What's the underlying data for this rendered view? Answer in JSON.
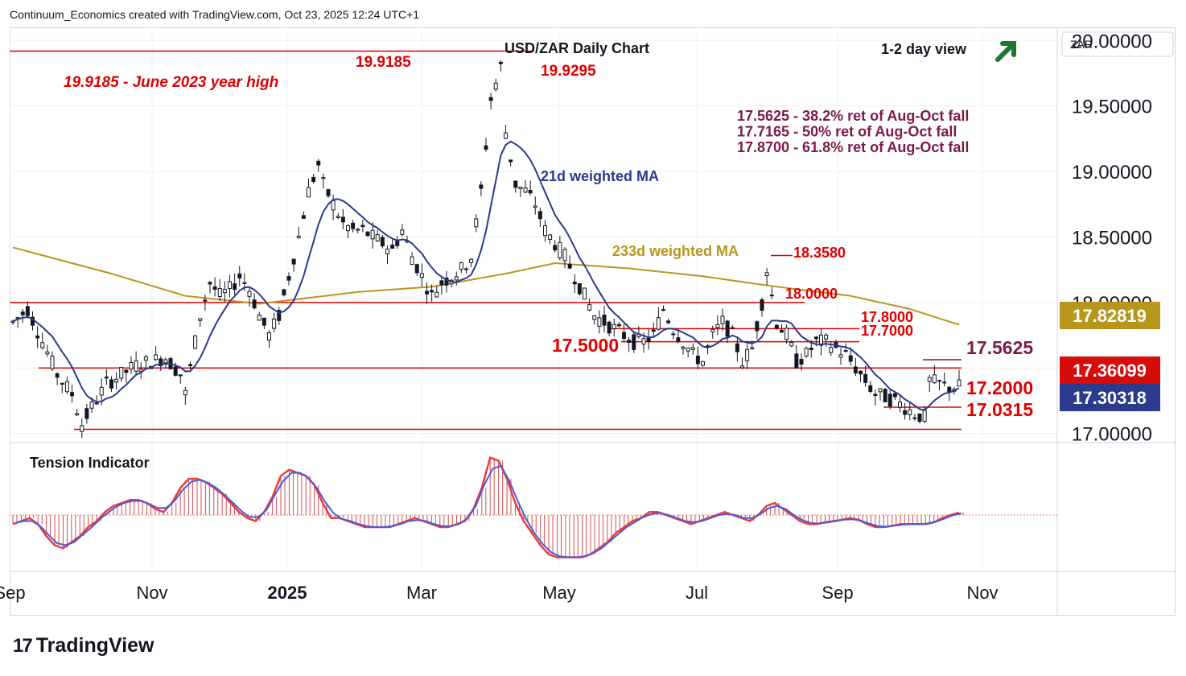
{
  "header": {
    "attribution": "Continuum_Economics created with TradingView.com, Oct 23, 2025 12:24 UTC+1"
  },
  "footer": {
    "logo_text": "TradingView",
    "logo_mark": "17"
  },
  "chart_data": {
    "type": "candlestick",
    "title": "USD/ZAR Daily Chart",
    "view_label": "1-2 day view",
    "view_arrow": "up-right",
    "currency_label": "ZAR",
    "x_tick_labels": [
      "Sep",
      "Nov",
      "2025",
      "Mar",
      "May",
      "Jul",
      "Sep",
      "Nov"
    ],
    "y_axis": {
      "min": 16.93,
      "max": 20.1,
      "ticks": [
        "17.00000",
        "17.50000",
        "18.00000",
        "18.50000",
        "19.00000",
        "19.50000",
        "20.00000"
      ]
    },
    "price_badges": [
      {
        "value": "17.82819",
        "color": "#b8961c",
        "label": "233d weighted MA"
      },
      {
        "value": "17.36099",
        "color": "#d80b0b",
        "label": "last price"
      },
      {
        "value": "17.30318",
        "color": "#2a3a8c",
        "label": "21d weighted MA"
      }
    ],
    "levels": [
      {
        "value": 19.9185,
        "label": "19.9185",
        "sublabel": "19.9185 - June 2023 year high"
      },
      {
        "value": 19.9295,
        "label": "19.9295"
      },
      {
        "value": 18.358,
        "label": "18.3580"
      },
      {
        "value": 18.0,
        "label": "18.0000"
      },
      {
        "value": 17.8,
        "label": "17.8000"
      },
      {
        "value": 17.7,
        "label": "17.7000"
      },
      {
        "value": 17.5625,
        "label": "17.5625"
      },
      {
        "value": 17.5,
        "label": "17.5000"
      },
      {
        "value": 17.2,
        "label": "17.2000"
      },
      {
        "value": 17.0315,
        "label": "17.0315"
      }
    ],
    "retracements": [
      "17.5625 - 38.2% ret of Aug-Oct fall",
      "17.7165 - 50% ret of Aug-Oct fall",
      "17.8700 - 61.8% ret of Aug-Oct fall"
    ],
    "ma_labels": {
      "ma21": "21d weighted MA",
      "ma233": "233d weighted MA"
    },
    "colors": {
      "level": "#e00000",
      "up": "#131722",
      "down": "#131722",
      "ma21": "#2a3a8c",
      "ma233": "#b8961c",
      "retracement": "#7b1a4b",
      "tension_fast": "#ef3b3b",
      "tension_slow": "#4b5bd8"
    },
    "price_path": [
      [
        0,
        17.85
      ],
      [
        3,
        17.95
      ],
      [
        6,
        17.7
      ],
      [
        9,
        17.45
      ],
      [
        12,
        17.3
      ],
      [
        14,
        17.07
      ],
      [
        16,
        17.2
      ],
      [
        19,
        17.38
      ],
      [
        22,
        17.45
      ],
      [
        25,
        17.52
      ],
      [
        28,
        17.55
      ],
      [
        31,
        17.58
      ],
      [
        34,
        17.45
      ],
      [
        35,
        17.3
      ],
      [
        36,
        17.5
      ],
      [
        38,
        17.9
      ],
      [
        40,
        18.15
      ],
      [
        42,
        18.05
      ],
      [
        44,
        18.1
      ],
      [
        46,
        18.2
      ],
      [
        48,
        18.1
      ],
      [
        50,
        17.9
      ],
      [
        52,
        17.75
      ],
      [
        54,
        17.9
      ],
      [
        56,
        18.2
      ],
      [
        58,
        18.5
      ],
      [
        60,
        18.85
      ],
      [
        62,
        19.05
      ],
      [
        63,
        18.9
      ],
      [
        65,
        18.75
      ],
      [
        67,
        18.6
      ],
      [
        69,
        18.55
      ],
      [
        71,
        18.55
      ],
      [
        73,
        18.5
      ],
      [
        75,
        18.45
      ],
      [
        77,
        18.4
      ],
      [
        79,
        18.55
      ],
      [
        81,
        18.35
      ],
      [
        83,
        18.2
      ],
      [
        85,
        18.05
      ],
      [
        87,
        18.15
      ],
      [
        89,
        18.2
      ],
      [
        91,
        18.25
      ],
      [
        93,
        18.35
      ],
      [
        95,
        18.85
      ],
      [
        97,
        19.55
      ],
      [
        99,
        19.8
      ],
      [
        100,
        19.3
      ],
      [
        102,
        18.9
      ],
      [
        104,
        18.85
      ],
      [
        106,
        18.75
      ],
      [
        108,
        18.55
      ],
      [
        110,
        18.45
      ],
      [
        112,
        18.35
      ],
      [
        114,
        18.2
      ],
      [
        116,
        18.05
      ],
      [
        118,
        17.9
      ],
      [
        120,
        17.85
      ],
      [
        122,
        17.8
      ],
      [
        124,
        17.75
      ],
      [
        126,
        17.7
      ],
      [
        128,
        17.7
      ],
      [
        130,
        17.75
      ],
      [
        132,
        17.95
      ],
      [
        134,
        17.8
      ],
      [
        136,
        17.7
      ],
      [
        138,
        17.6
      ],
      [
        140,
        17.55
      ],
      [
        142,
        17.75
      ],
      [
        144,
        17.85
      ],
      [
        146,
        17.75
      ],
      [
        148,
        17.55
      ],
      [
        150,
        17.65
      ],
      [
        152,
        18.0
      ],
      [
        153,
        18.25
      ],
      [
        155,
        17.85
      ],
      [
        157,
        17.75
      ],
      [
        159,
        17.55
      ],
      [
        161,
        17.6
      ],
      [
        163,
        17.7
      ],
      [
        165,
        17.7
      ],
      [
        167,
        17.65
      ],
      [
        169,
        17.6
      ],
      [
        171,
        17.5
      ],
      [
        173,
        17.4
      ],
      [
        175,
        17.3
      ],
      [
        177,
        17.28
      ],
      [
        179,
        17.25
      ],
      [
        181,
        17.2
      ],
      [
        183,
        17.15
      ],
      [
        185,
        17.12
      ],
      [
        186,
        17.4
      ],
      [
        188,
        17.38
      ],
      [
        190,
        17.35
      ],
      [
        192,
        17.36
      ]
    ],
    "tension": {
      "label": "Tension Indicator",
      "values": [
        -0.15,
        -0.1,
        -0.05,
        -0.15,
        -0.35,
        -0.5,
        -0.55,
        -0.45,
        -0.35,
        -0.2,
        -0.1,
        0.05,
        0.15,
        0.2,
        0.25,
        0.25,
        0.2,
        0.1,
        0.05,
        0.2,
        0.45,
        0.6,
        0.6,
        0.55,
        0.45,
        0.35,
        0.2,
        0.05,
        -0.05,
        -0.1,
        0.05,
        0.3,
        0.65,
        0.75,
        0.7,
        0.65,
        0.5,
        0.2,
        -0.05,
        -0.05,
        -0.1,
        -0.15,
        -0.2,
        -0.2,
        -0.2,
        -0.2,
        -0.15,
        -0.1,
        -0.05,
        -0.1,
        -0.15,
        -0.2,
        -0.2,
        -0.15,
        -0.1,
        0.1,
        0.45,
        0.95,
        0.9,
        0.6,
        0.2,
        -0.1,
        -0.3,
        -0.5,
        -0.65,
        -0.7,
        -0.7,
        -0.7,
        -0.7,
        -0.65,
        -0.55,
        -0.45,
        -0.3,
        -0.2,
        -0.1,
        -0.05,
        0.05,
        0.05,
        0.0,
        -0.05,
        -0.1,
        -0.15,
        -0.1,
        -0.05,
        0.0,
        0.05,
        0.0,
        -0.05,
        -0.1,
        0.0,
        0.15,
        0.2,
        0.1,
        0.0,
        -0.1,
        -0.15,
        -0.15,
        -0.12,
        -0.1,
        -0.08,
        -0.05,
        -0.08,
        -0.15,
        -0.2,
        -0.2,
        -0.18,
        -0.15,
        -0.15,
        -0.15,
        -0.15,
        -0.12,
        -0.05,
        0.0,
        0.04
      ]
    }
  }
}
